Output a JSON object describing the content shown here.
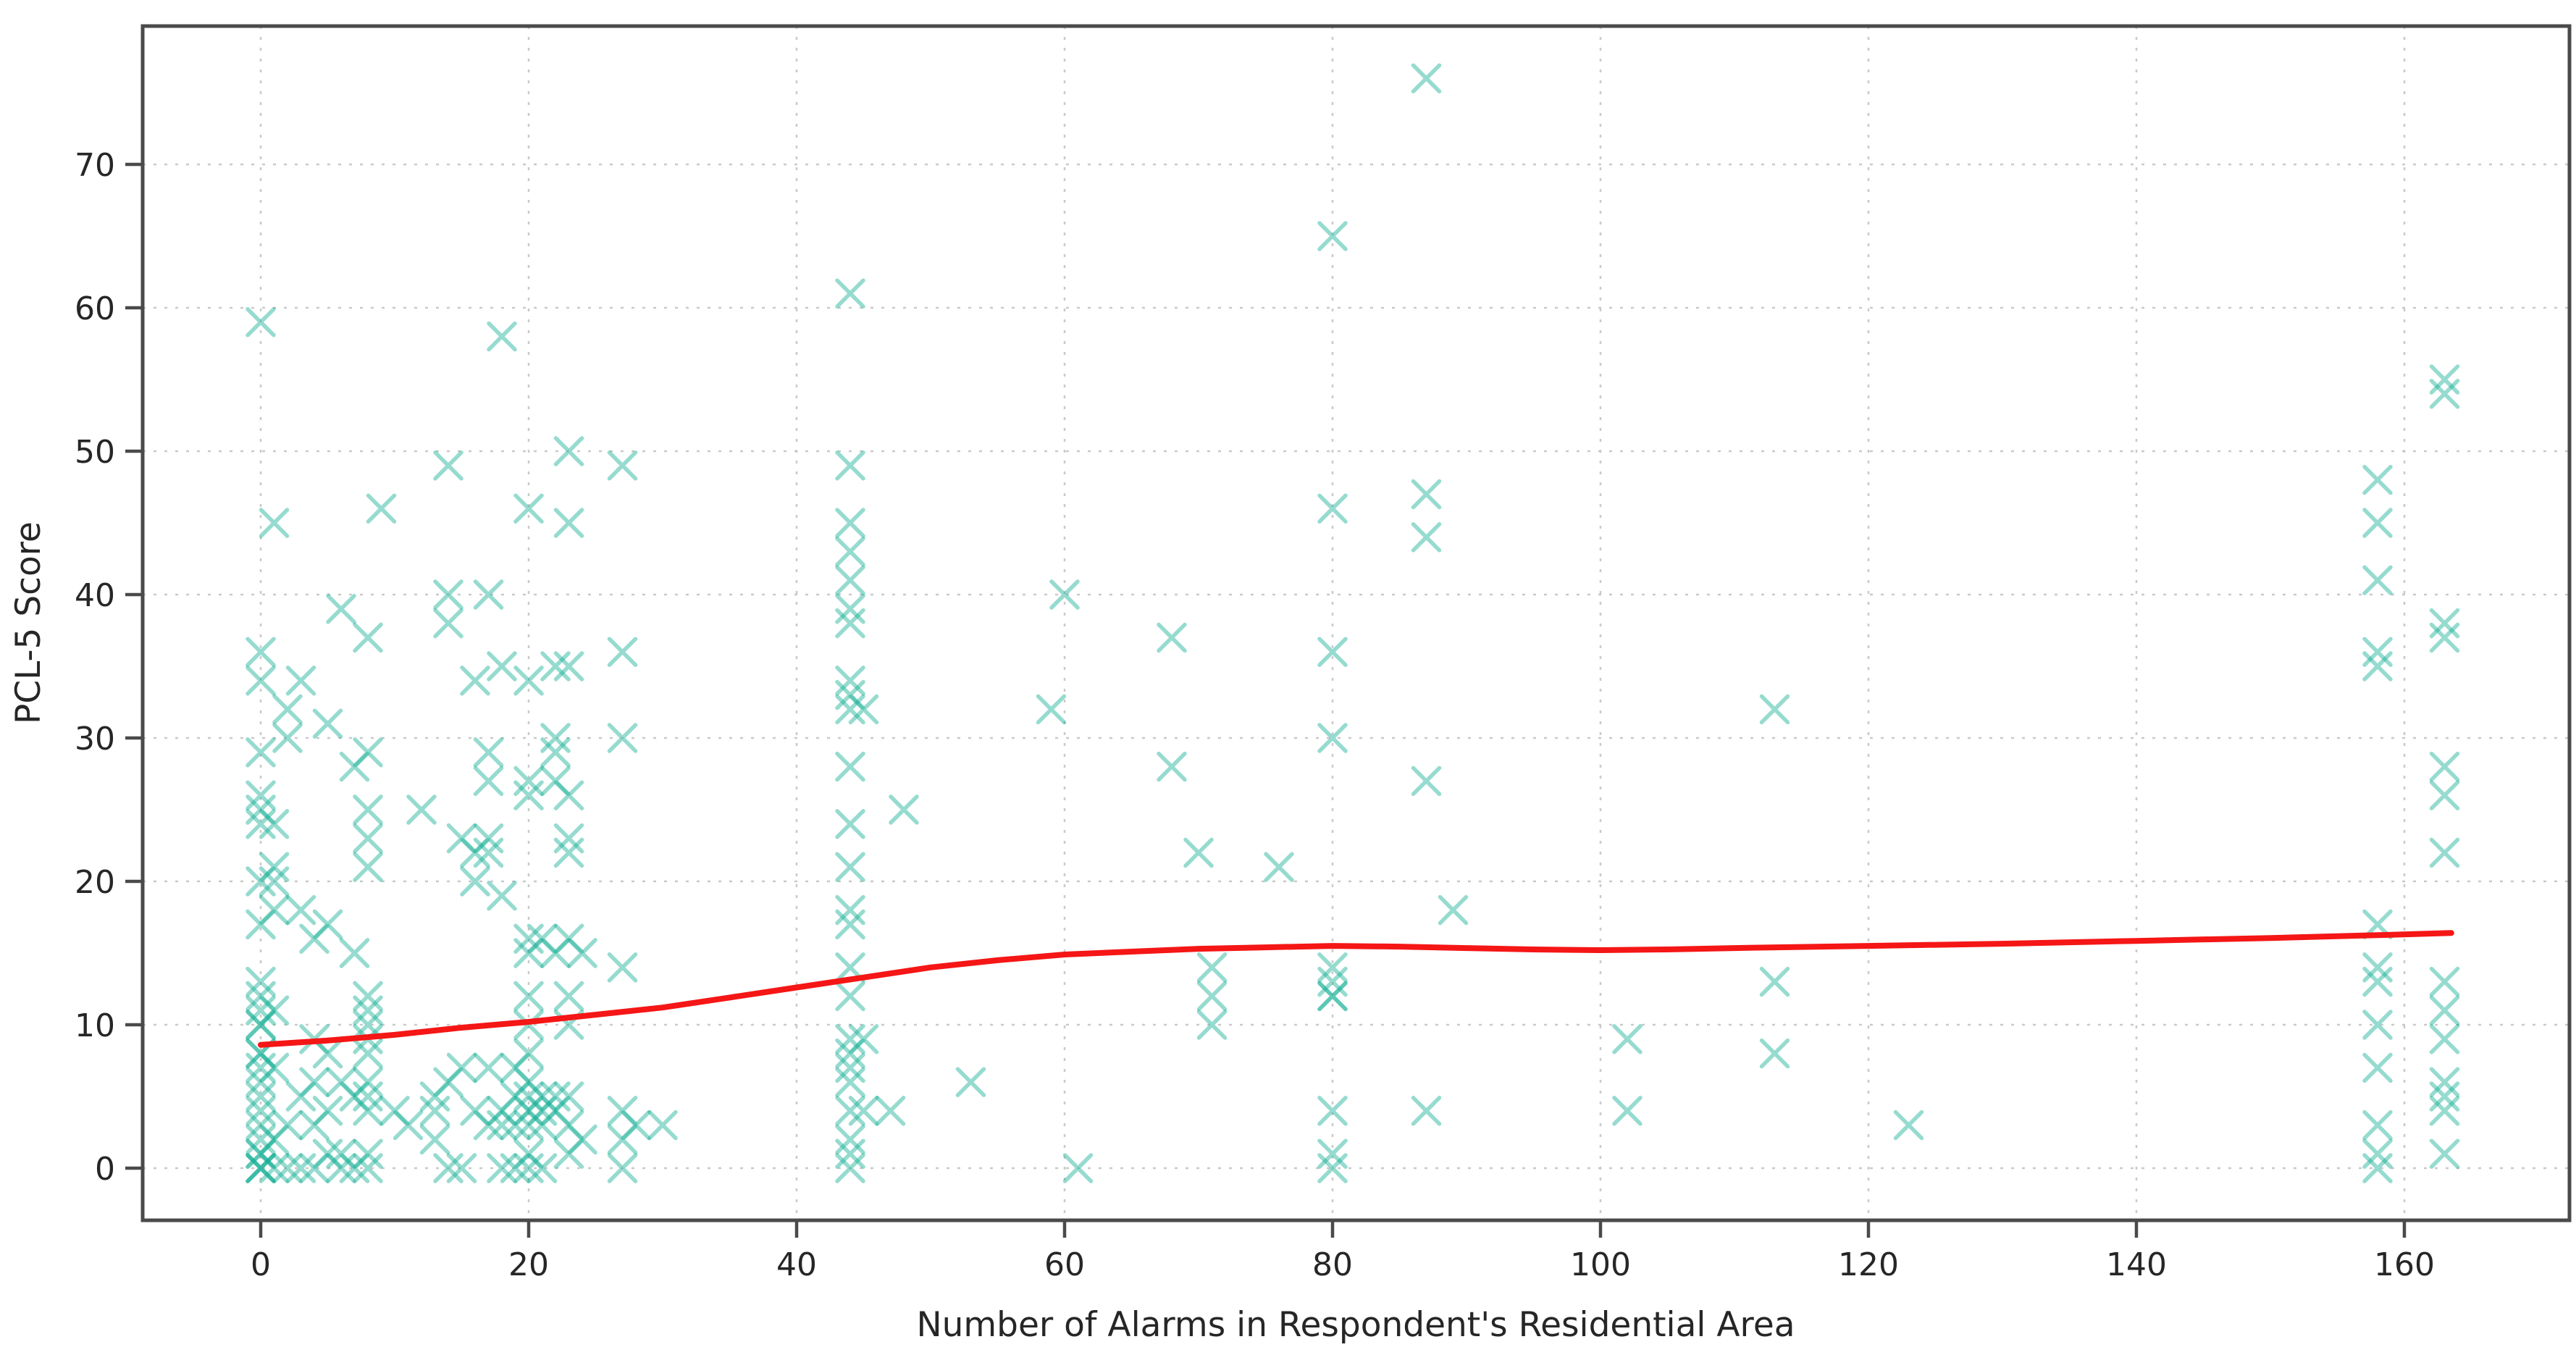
{
  "chart_data": {
    "type": "scatter",
    "title": "",
    "xlabel": "Number of Alarms in Respondent's Residential Area",
    "ylabel": "PCL-5 Score",
    "xlim": [
      -8.8,
      172.3
    ],
    "ylim": [
      -3.6,
      79.6
    ],
    "x_ticks": [
      0,
      20,
      40,
      60,
      80,
      100,
      120,
      140,
      160
    ],
    "y_ticks": [
      0,
      10,
      20,
      30,
      40,
      50,
      60,
      70
    ],
    "grid": true,
    "legend": "none",
    "marker_style": "x",
    "marker_color": "#17b095",
    "marker_opacity": 0.45,
    "trend_color": "#f51616",
    "grid_color": "#c9c9c9",
    "spine_color": "#4a4a4a",
    "points": [
      [
        0,
        59
      ],
      [
        0,
        36
      ],
      [
        0,
        34
      ],
      [
        0,
        29
      ],
      [
        0,
        26
      ],
      [
        0,
        25
      ],
      [
        0,
        24
      ],
      [
        1,
        24
      ],
      [
        0,
        20
      ],
      [
        0,
        17
      ],
      [
        0,
        13
      ],
      [
        0,
        12
      ],
      [
        0,
        11
      ],
      [
        0,
        10
      ],
      [
        0,
        10
      ],
      [
        0,
        8
      ],
      [
        0,
        8
      ],
      [
        0,
        7
      ],
      [
        0,
        6
      ],
      [
        0,
        5
      ],
      [
        0,
        4
      ],
      [
        0,
        3
      ],
      [
        0,
        2
      ],
      [
        0,
        1
      ],
      [
        0,
        1
      ],
      [
        0,
        0
      ],
      [
        0,
        0
      ],
      [
        0,
        0
      ],
      [
        1,
        45
      ],
      [
        1,
        21
      ],
      [
        1,
        20
      ],
      [
        1,
        18
      ],
      [
        1,
        11
      ],
      [
        1,
        7
      ],
      [
        1,
        2
      ],
      [
        1,
        0
      ],
      [
        2,
        32
      ],
      [
        2,
        30
      ],
      [
        2,
        3
      ],
      [
        2,
        0
      ],
      [
        3,
        34
      ],
      [
        3,
        18
      ],
      [
        3,
        5
      ],
      [
        3,
        0
      ],
      [
        4,
        16
      ],
      [
        4,
        9
      ],
      [
        4,
        6
      ],
      [
        4,
        3
      ],
      [
        4,
        0
      ],
      [
        5,
        31
      ],
      [
        5,
        17
      ],
      [
        5,
        8
      ],
      [
        5,
        4
      ],
      [
        5,
        1
      ],
      [
        6,
        39
      ],
      [
        6,
        6
      ],
      [
        6,
        1
      ],
      [
        6,
        0
      ],
      [
        7,
        28
      ],
      [
        7,
        15
      ],
      [
        7,
        5
      ],
      [
        7,
        0
      ],
      [
        8,
        37
      ],
      [
        8,
        29
      ],
      [
        8,
        25
      ],
      [
        8,
        23
      ],
      [
        8,
        21
      ],
      [
        8,
        12
      ],
      [
        8,
        11
      ],
      [
        8,
        10
      ],
      [
        8,
        9
      ],
      [
        8,
        8
      ],
      [
        8,
        6
      ],
      [
        8,
        5
      ],
      [
        8,
        4
      ],
      [
        8,
        1
      ],
      [
        8,
        0
      ],
      [
        9,
        46
      ],
      [
        10,
        4
      ],
      [
        11,
        3
      ],
      [
        12,
        25
      ],
      [
        13,
        5
      ],
      [
        13,
        4
      ],
      [
        13,
        2
      ],
      [
        14,
        49
      ],
      [
        14,
        40
      ],
      [
        14,
        38
      ],
      [
        14,
        6
      ],
      [
        14,
        0
      ],
      [
        15,
        23
      ],
      [
        15,
        7
      ],
      [
        15,
        0
      ],
      [
        16,
        34
      ],
      [
        16,
        22
      ],
      [
        16,
        20
      ],
      [
        16,
        4
      ],
      [
        17,
        40
      ],
      [
        17,
        29
      ],
      [
        17,
        27
      ],
      [
        17,
        23
      ],
      [
        17,
        22
      ],
      [
        17,
        7
      ],
      [
        17,
        3
      ],
      [
        18,
        58
      ],
      [
        18,
        35
      ],
      [
        18,
        19
      ],
      [
        18,
        4
      ],
      [
        18,
        3
      ],
      [
        18,
        0
      ],
      [
        19,
        7
      ],
      [
        19,
        5
      ],
      [
        19,
        3
      ],
      [
        19,
        0
      ],
      [
        20,
        46
      ],
      [
        20,
        34
      ],
      [
        20,
        27
      ],
      [
        20,
        26
      ],
      [
        20,
        16
      ],
      [
        20,
        15
      ],
      [
        20,
        12
      ],
      [
        20,
        10
      ],
      [
        20,
        8
      ],
      [
        20,
        6
      ],
      [
        20,
        5
      ],
      [
        20,
        4
      ],
      [
        20,
        3
      ],
      [
        20,
        1
      ],
      [
        20,
        0
      ],
      [
        21,
        16
      ],
      [
        21,
        5
      ],
      [
        21,
        4
      ],
      [
        21,
        3
      ],
      [
        21,
        0
      ],
      [
        22,
        35
      ],
      [
        22,
        30
      ],
      [
        22,
        29
      ],
      [
        22,
        27
      ],
      [
        22,
        15
      ],
      [
        22,
        5
      ],
      [
        22,
        4
      ],
      [
        23,
        50
      ],
      [
        23,
        45
      ],
      [
        23,
        35
      ],
      [
        23,
        26
      ],
      [
        23,
        23
      ],
      [
        23,
        22
      ],
      [
        23,
        16
      ],
      [
        23,
        12
      ],
      [
        23,
        10
      ],
      [
        23,
        5
      ],
      [
        23,
        3
      ],
      [
        23,
        1
      ],
      [
        24,
        15
      ],
      [
        24,
        2
      ],
      [
        27,
        49
      ],
      [
        27,
        36
      ],
      [
        27,
        30
      ],
      [
        27,
        14
      ],
      [
        27,
        4
      ],
      [
        27,
        2
      ],
      [
        27,
        0
      ],
      [
        28,
        3
      ],
      [
        30,
        3
      ],
      [
        44,
        61
      ],
      [
        44,
        49
      ],
      [
        44,
        45
      ],
      [
        44,
        43
      ],
      [
        44,
        41
      ],
      [
        44,
        39
      ],
      [
        44,
        38
      ],
      [
        44,
        34
      ],
      [
        44,
        33
      ],
      [
        44,
        32
      ],
      [
        44,
        28
      ],
      [
        44,
        24
      ],
      [
        44,
        21
      ],
      [
        44,
        18
      ],
      [
        44,
        17
      ],
      [
        44,
        14
      ],
      [
        44,
        12
      ],
      [
        44,
        9
      ],
      [
        44,
        8
      ],
      [
        44,
        7
      ],
      [
        44,
        6
      ],
      [
        44,
        4
      ],
      [
        44,
        2
      ],
      [
        44,
        1
      ],
      [
        44,
        0
      ],
      [
        45,
        32
      ],
      [
        45,
        9
      ],
      [
        45,
        4
      ],
      [
        47,
        4
      ],
      [
        48,
        25
      ],
      [
        53,
        6
      ],
      [
        59,
        32
      ],
      [
        60,
        40
      ],
      [
        61,
        0
      ],
      [
        68,
        37
      ],
      [
        68,
        28
      ],
      [
        70,
        22
      ],
      [
        71,
        14
      ],
      [
        71,
        12
      ],
      [
        71,
        10
      ],
      [
        76,
        21
      ],
      [
        80,
        65
      ],
      [
        80,
        46
      ],
      [
        80,
        36
      ],
      [
        80,
        30
      ],
      [
        80,
        14
      ],
      [
        80,
        13
      ],
      [
        80,
        12
      ],
      [
        80,
        12
      ],
      [
        80,
        4
      ],
      [
        80,
        1
      ],
      [
        80,
        0
      ],
      [
        87,
        76
      ],
      [
        87,
        47
      ],
      [
        87,
        44
      ],
      [
        87,
        27
      ],
      [
        87,
        4
      ],
      [
        89,
        18
      ],
      [
        102,
        9
      ],
      [
        102,
        4
      ],
      [
        113,
        32
      ],
      [
        113,
        13
      ],
      [
        113,
        8
      ],
      [
        123,
        3
      ],
      [
        158,
        48
      ],
      [
        158,
        45
      ],
      [
        158,
        41
      ],
      [
        158,
        36
      ],
      [
        158,
        35
      ],
      [
        158,
        17
      ],
      [
        158,
        14
      ],
      [
        158,
        13
      ],
      [
        158,
        10
      ],
      [
        158,
        7
      ],
      [
        158,
        3
      ],
      [
        158,
        1
      ],
      [
        158,
        0
      ],
      [
        163,
        55
      ],
      [
        163,
        54
      ],
      [
        163,
        38
      ],
      [
        163,
        37
      ],
      [
        163,
        28
      ],
      [
        163,
        26
      ],
      [
        163,
        22
      ],
      [
        163,
        13
      ],
      [
        163,
        11
      ],
      [
        163,
        9
      ],
      [
        163,
        6
      ],
      [
        163,
        5
      ],
      [
        163,
        4
      ],
      [
        163,
        1
      ]
    ],
    "trend": {
      "name": "lowess-trend",
      "values": [
        [
          0,
          8.6
        ],
        [
          5,
          8.9
        ],
        [
          10,
          9.3
        ],
        [
          15,
          9.8
        ],
        [
          20,
          10.2
        ],
        [
          25,
          10.7
        ],
        [
          30,
          11.2
        ],
        [
          35,
          11.9
        ],
        [
          40,
          12.6
        ],
        [
          45,
          13.3
        ],
        [
          50,
          14.0
        ],
        [
          55,
          14.5
        ],
        [
          60,
          14.9
        ],
        [
          65,
          15.1
        ],
        [
          70,
          15.3
        ],
        [
          75,
          15.4
        ],
        [
          80,
          15.5
        ],
        [
          85,
          15.45
        ],
        [
          90,
          15.35
        ],
        [
          95,
          15.25
        ],
        [
          100,
          15.2
        ],
        [
          105,
          15.25
        ],
        [
          110,
          15.35
        ],
        [
          120,
          15.5
        ],
        [
          130,
          15.65
        ],
        [
          140,
          15.85
        ],
        [
          150,
          16.05
        ],
        [
          158,
          16.25
        ],
        [
          163.5,
          16.4
        ]
      ]
    }
  }
}
